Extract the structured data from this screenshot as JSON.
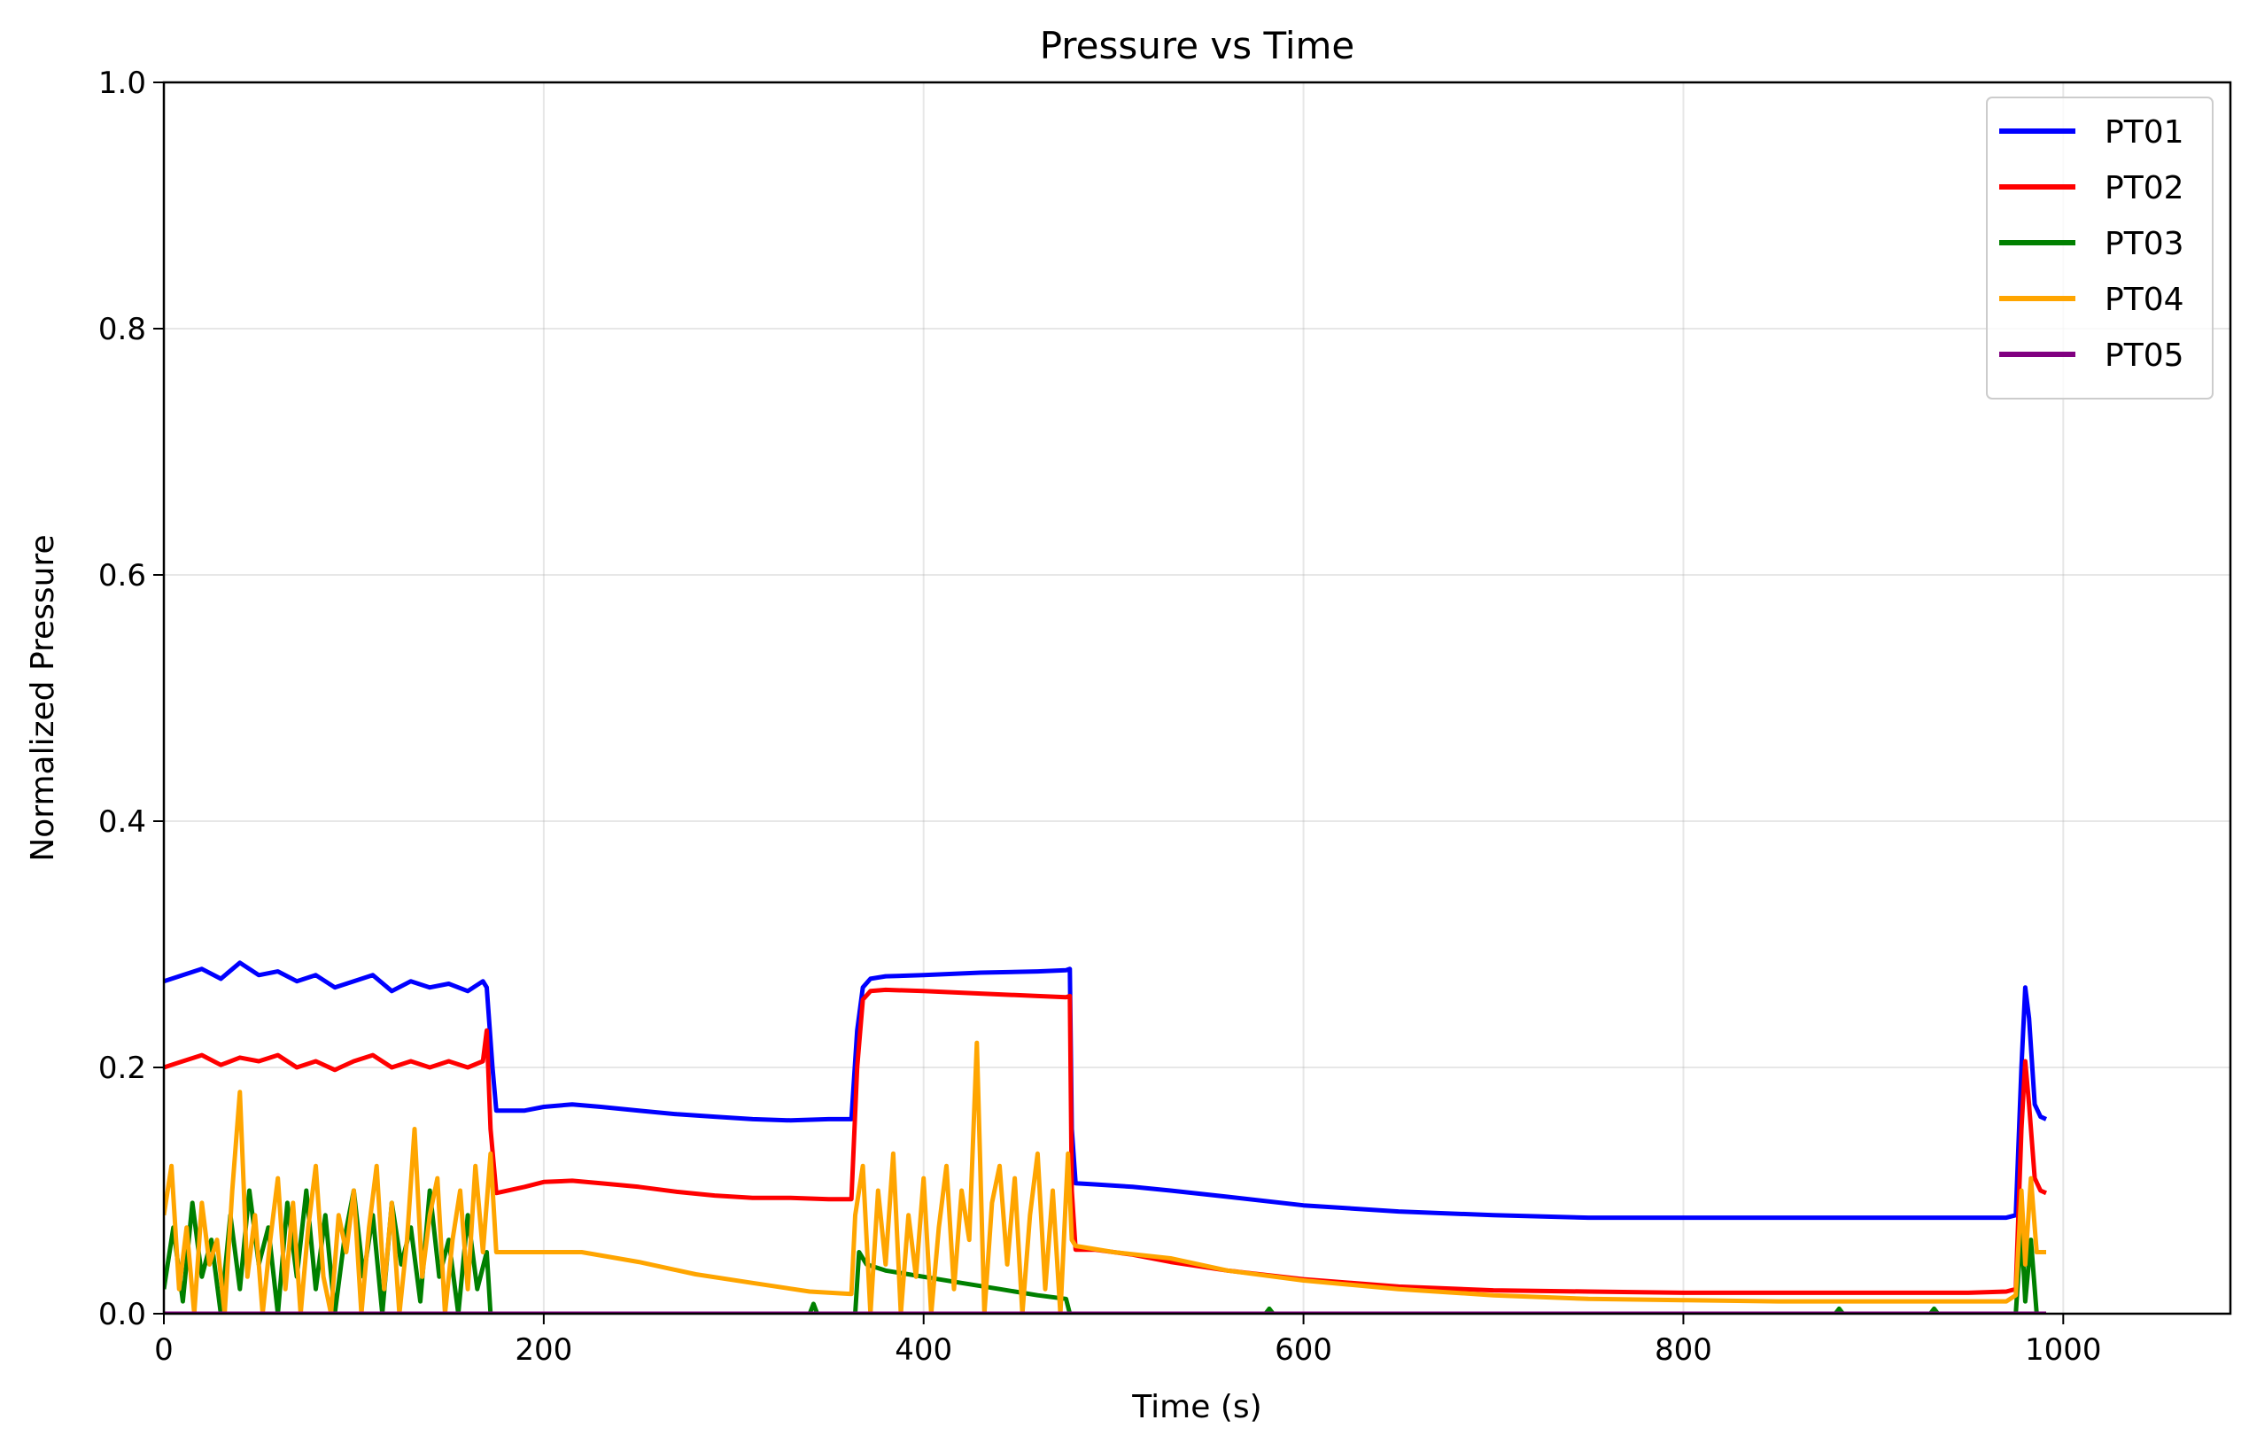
{
  "chart_data": {
    "type": "line",
    "title": "Pressure vs Time",
    "xlabel": "Time (s)",
    "ylabel": "Normalized Pressure",
    "xlim": [
      0,
      1088
    ],
    "ylim": [
      0,
      1.0
    ],
    "x_ticks": [
      0,
      200,
      400,
      600,
      800,
      1000
    ],
    "y_ticks": [
      0.0,
      0.2,
      0.4,
      0.6,
      0.8,
      1.0
    ],
    "x_tick_labels": [
      "0",
      "200",
      "400",
      "600",
      "800",
      "1000"
    ],
    "y_tick_labels": [
      "0.0",
      "0.2",
      "0.4",
      "0.6",
      "0.8",
      "1.0"
    ],
    "grid": true,
    "legend_position": "top-right",
    "series": [
      {
        "name": "PT01",
        "color": "#0000ff",
        "x": [
          0,
          10,
          20,
          30,
          40,
          50,
          60,
          70,
          80,
          90,
          100,
          110,
          120,
          130,
          140,
          150,
          160,
          168,
          170,
          173,
          175,
          190,
          200,
          215,
          230,
          250,
          270,
          290,
          310,
          330,
          350,
          362,
          365,
          368,
          372,
          380,
          400,
          430,
          460,
          475,
          477,
          478,
          480,
          490,
          510,
          530,
          560,
          600,
          650,
          700,
          750,
          800,
          850,
          900,
          950,
          970,
          975,
          978,
          980,
          982,
          985,
          988,
          991
        ],
        "y": [
          0.27,
          0.275,
          0.28,
          0.272,
          0.285,
          0.275,
          0.278,
          0.27,
          0.275,
          0.265,
          0.27,
          0.275,
          0.262,
          0.27,
          0.265,
          0.268,
          0.262,
          0.27,
          0.265,
          0.2,
          0.165,
          0.165,
          0.168,
          0.17,
          0.168,
          0.165,
          0.162,
          0.16,
          0.158,
          0.157,
          0.158,
          0.158,
          0.23,
          0.265,
          0.272,
          0.274,
          0.275,
          0.277,
          0.278,
          0.279,
          0.28,
          0.15,
          0.106,
          0.105,
          0.103,
          0.1,
          0.095,
          0.088,
          0.083,
          0.08,
          0.078,
          0.078,
          0.078,
          0.078,
          0.078,
          0.078,
          0.08,
          0.2,
          0.265,
          0.24,
          0.17,
          0.16,
          0.158
        ]
      },
      {
        "name": "PT02",
        "color": "#ff0000",
        "x": [
          0,
          10,
          20,
          30,
          40,
          50,
          60,
          70,
          80,
          90,
          100,
          110,
          120,
          130,
          140,
          150,
          160,
          168,
          170,
          172,
          175,
          190,
          200,
          215,
          230,
          250,
          270,
          290,
          310,
          330,
          350,
          362,
          365,
          368,
          372,
          380,
          400,
          430,
          460,
          475,
          477,
          478,
          480,
          490,
          510,
          530,
          560,
          600,
          650,
          700,
          750,
          800,
          850,
          900,
          950,
          970,
          975,
          978,
          980,
          982,
          985,
          988,
          991
        ],
        "y": [
          0.2,
          0.205,
          0.21,
          0.202,
          0.208,
          0.205,
          0.21,
          0.2,
          0.205,
          0.198,
          0.205,
          0.21,
          0.2,
          0.205,
          0.2,
          0.205,
          0.2,
          0.205,
          0.23,
          0.15,
          0.098,
          0.103,
          0.107,
          0.108,
          0.106,
          0.103,
          0.099,
          0.096,
          0.094,
          0.094,
          0.093,
          0.093,
          0.2,
          0.255,
          0.262,
          0.263,
          0.262,
          0.26,
          0.258,
          0.257,
          0.258,
          0.1,
          0.052,
          0.052,
          0.048,
          0.042,
          0.035,
          0.028,
          0.022,
          0.019,
          0.018,
          0.017,
          0.017,
          0.017,
          0.017,
          0.018,
          0.02,
          0.15,
          0.205,
          0.17,
          0.11,
          0.1,
          0.098
        ]
      },
      {
        "name": "PT03",
        "color": "#008000",
        "x": [
          0,
          5,
          10,
          15,
          20,
          25,
          30,
          35,
          40,
          45,
          50,
          55,
          60,
          65,
          70,
          75,
          80,
          85,
          90,
          95,
          100,
          105,
          110,
          115,
          120,
          125,
          130,
          135,
          140,
          145,
          150,
          155,
          160,
          165,
          170,
          172,
          175,
          200,
          250,
          300,
          340,
          342,
          344,
          360,
          364,
          366,
          370,
          380,
          400,
          420,
          440,
          460,
          475,
          477,
          480,
          500,
          580,
          582,
          584,
          700,
          880,
          882,
          884,
          930,
          932,
          934,
          975,
          978,
          980,
          983,
          986,
          991
        ],
        "y": [
          0.02,
          0.07,
          0.01,
          0.09,
          0.03,
          0.06,
          0.0,
          0.08,
          0.02,
          0.1,
          0.04,
          0.07,
          0.0,
          0.09,
          0.03,
          0.1,
          0.02,
          0.08,
          0.0,
          0.06,
          0.1,
          0.03,
          0.08,
          0.0,
          0.09,
          0.04,
          0.07,
          0.01,
          0.1,
          0.03,
          0.06,
          0.0,
          0.08,
          0.02,
          0.05,
          0.0,
          0.0,
          0.0,
          0.0,
          0.0,
          0.0,
          0.008,
          0.0,
          0.0,
          0.0,
          0.05,
          0.04,
          0.035,
          0.03,
          0.025,
          0.02,
          0.015,
          0.012,
          0.0,
          0.0,
          0.0,
          0.0,
          0.004,
          0.0,
          0.0,
          0.0,
          0.004,
          0.0,
          0.0,
          0.004,
          0.0,
          0.0,
          0.07,
          0.01,
          0.06,
          0.0,
          0.0
        ]
      },
      {
        "name": "PT04",
        "color": "#ffa500",
        "x": [
          0,
          4,
          8,
          12,
          16,
          20,
          24,
          28,
          32,
          36,
          40,
          44,
          48,
          52,
          56,
          60,
          64,
          68,
          72,
          76,
          80,
          84,
          88,
          92,
          96,
          100,
          104,
          108,
          112,
          116,
          120,
          124,
          128,
          132,
          136,
          140,
          144,
          148,
          152,
          156,
          160,
          164,
          168,
          172,
          175,
          200,
          220,
          250,
          280,
          310,
          340,
          362,
          364,
          368,
          372,
          376,
          380,
          384,
          388,
          392,
          396,
          400,
          404,
          408,
          412,
          416,
          420,
          424,
          428,
          432,
          436,
          440,
          444,
          448,
          452,
          456,
          460,
          464,
          468,
          472,
          476,
          478,
          480,
          500,
          530,
          560,
          600,
          650,
          700,
          750,
          800,
          850,
          900,
          950,
          970,
          975,
          978,
          980,
          983,
          986,
          991
        ],
        "y": [
          0.08,
          0.12,
          0.02,
          0.07,
          0.0,
          0.09,
          0.04,
          0.06,
          0.0,
          0.1,
          0.18,
          0.03,
          0.08,
          0.0,
          0.06,
          0.11,
          0.02,
          0.09,
          0.0,
          0.07,
          0.12,
          0.03,
          0.0,
          0.08,
          0.05,
          0.1,
          0.0,
          0.07,
          0.12,
          0.02,
          0.09,
          0.0,
          0.06,
          0.15,
          0.03,
          0.08,
          0.11,
          0.0,
          0.06,
          0.1,
          0.02,
          0.12,
          0.05,
          0.13,
          0.05,
          0.05,
          0.05,
          0.042,
          0.032,
          0.025,
          0.018,
          0.016,
          0.08,
          0.12,
          0.0,
          0.1,
          0.04,
          0.13,
          0.0,
          0.08,
          0.03,
          0.11,
          0.0,
          0.07,
          0.12,
          0.02,
          0.1,
          0.06,
          0.22,
          0.0,
          0.09,
          0.12,
          0.04,
          0.11,
          0.0,
          0.08,
          0.13,
          0.02,
          0.1,
          0.0,
          0.13,
          0.06,
          0.055,
          0.05,
          0.045,
          0.035,
          0.027,
          0.02,
          0.015,
          0.012,
          0.011,
          0.01,
          0.01,
          0.01,
          0.01,
          0.015,
          0.1,
          0.04,
          0.11,
          0.05,
          0.05
        ]
      },
      {
        "name": "PT05",
        "color": "#800080",
        "x": [
          0,
          991
        ],
        "y": [
          0.0,
          0.0
        ]
      }
    ]
  }
}
